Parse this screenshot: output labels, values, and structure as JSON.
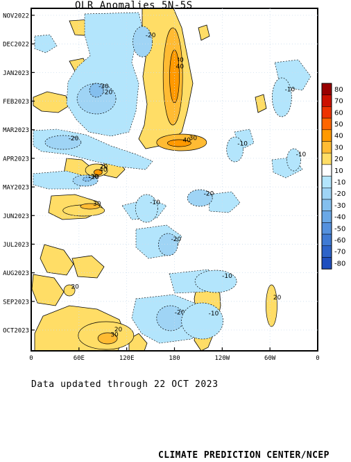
{
  "title": "OLR Anomalies 5N-5S",
  "updated_text": "Data updated through 22 OCT 2023",
  "credit": "CLIMATE PREDICTION CENTER/NCEP",
  "chart_data": {
    "type": "heatmap",
    "title": "OLR Anomalies 5N-5S",
    "y_ticks": [
      "NOV2022",
      "DEC2022",
      "JAN2023",
      "FEB2023",
      "MAR2023",
      "APR2023",
      "MAY2023",
      "JUN2023",
      "JUL2023",
      "AUG2023",
      "SEP2023",
      "OCT2023"
    ],
    "x_ticks": [
      "0",
      "60E",
      "120E",
      "180",
      "120W",
      "60W",
      "0"
    ],
    "xlim": [
      0,
      360
    ],
    "colorbar": {
      "levels": [
        "80",
        "70",
        "60",
        "50",
        "40",
        "30",
        "20",
        "10",
        "-10",
        "-20",
        "-30",
        "-40",
        "-50",
        "-60",
        "-70",
        "-80"
      ],
      "colors": [
        "#990000",
        "#cc1100",
        "#ee3300",
        "#ff6600",
        "#ff9900",
        "#ffbb33",
        "#ffdd66",
        "#ffffff",
        "#b3e5fc",
        "#9fd4f5",
        "#84bfee",
        "#6aa8e6",
        "#5591de",
        "#3f7ad4",
        "#2d63c9",
        "#1f4fbf"
      ]
    },
    "features": [
      {
        "x": 178,
        "y": 110,
        "rx": 14,
        "ry": 70,
        "value": 30,
        "color": "#ffbb33"
      },
      {
        "x": 180,
        "y": 110,
        "rx": 7,
        "ry": 38,
        "value": 40,
        "color": "#ff9900"
      },
      {
        "x": 189,
        "y": 205,
        "rx": 36,
        "ry": 12,
        "value": 30,
        "color": "#ffbb33"
      },
      {
        "x": 186,
        "y": 206,
        "rx": 17,
        "ry": 5,
        "value": 40,
        "color": "#ff9900"
      },
      {
        "x": 82,
        "y": 245,
        "rx": 16,
        "ry": 9,
        "value": 20,
        "color": "#ffdd66"
      },
      {
        "x": 84,
        "y": 248,
        "rx": 6,
        "ry": 4,
        "value": 40,
        "color": "#ff9900"
      },
      {
        "x": 66,
        "y": 303,
        "rx": 30,
        "ry": 8,
        "value": 20,
        "color": "#ffdd66"
      },
      {
        "x": 74,
        "y": 297,
        "rx": 14,
        "ry": 4,
        "value": 30,
        "color": "#ffbb33"
      },
      {
        "x": 94,
        "y": 483,
        "rx": 40,
        "ry": 20,
        "value": 20,
        "color": "#ffdd66"
      },
      {
        "x": 96,
        "y": 487,
        "rx": 14,
        "ry": 8,
        "value": 30,
        "color": "#ffbb33"
      },
      {
        "x": 48,
        "y": 418,
        "rx": 8,
        "ry": 8,
        "value": 20,
        "color": "#ffdd66"
      },
      {
        "x": 302,
        "y": 440,
        "rx": 8,
        "ry": 30,
        "value": 20,
        "color": "#ffdd66"
      },
      {
        "x": 140,
        "y": 60,
        "rx": 14,
        "ry": 22,
        "value": -20,
        "color": "#9fd4f5"
      },
      {
        "x": 82,
        "y": 142,
        "rx": 28,
        "ry": 22,
        "value": -20,
        "color": "#9fd4f5"
      },
      {
        "x": 82,
        "y": 130,
        "rx": 10,
        "ry": 10,
        "value": -30,
        "color": "#84bfee"
      },
      {
        "x": 40,
        "y": 205,
        "rx": 26,
        "ry": 10,
        "value": -20,
        "color": "#9fd4f5"
      },
      {
        "x": 68,
        "y": 260,
        "rx": 18,
        "ry": 8,
        "value": -20,
        "color": "#9fd4f5"
      },
      {
        "x": 70,
        "y": 258,
        "rx": 6,
        "ry": 3,
        "value": -30,
        "color": "#84bfee"
      },
      {
        "x": 172,
        "y": 352,
        "rx": 14,
        "ry": 16,
        "value": -20,
        "color": "#9fd4f5"
      },
      {
        "x": 212,
        "y": 285,
        "rx": 18,
        "ry": 12,
        "value": -20,
        "color": "#9fd4f5"
      },
      {
        "x": 175,
        "y": 458,
        "rx": 20,
        "ry": 18,
        "value": -20,
        "color": "#9fd4f5"
      },
      {
        "x": 215,
        "y": 462,
        "rx": 30,
        "ry": 26,
        "value": -10,
        "color": "#b3e5fc"
      },
      {
        "x": 232,
        "y": 405,
        "rx": 30,
        "ry": 16,
        "value": -10,
        "color": "#b3e5fc"
      },
      {
        "x": 145,
        "y": 300,
        "rx": 16,
        "ry": 20,
        "value": -10,
        "color": "#b3e5fc"
      },
      {
        "x": 256,
        "y": 215,
        "rx": 12,
        "ry": 18,
        "value": -10,
        "color": "#b3e5fc"
      },
      {
        "x": 315,
        "y": 140,
        "rx": 14,
        "ry": 28,
        "value": -10,
        "color": "#b3e5fc"
      },
      {
        "x": 330,
        "y": 230,
        "rx": 10,
        "ry": 16,
        "value": -10,
        "color": "#b3e5fc"
      }
    ]
  }
}
